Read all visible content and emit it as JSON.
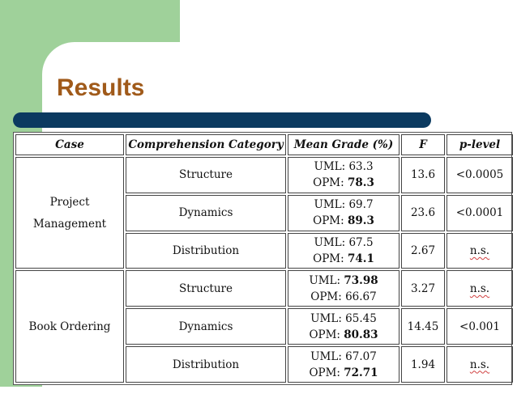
{
  "slide": {
    "title": "Results"
  },
  "table": {
    "headers": [
      "Case",
      "Comprehension Category",
      "Mean Grade (%)",
      "F",
      "p-level"
    ],
    "groups": [
      {
        "case": "Project Management",
        "case_lines": [
          "Project",
          "Management"
        ],
        "rows": [
          {
            "category": "Structure",
            "uml_prefix": "UML: ",
            "uml": "63.3",
            "opm_prefix": "OPM: ",
            "opm": "78.3",
            "bold": "opm",
            "f": "13.6",
            "p": "<0.0005"
          },
          {
            "category": "Dynamics",
            "uml_prefix": "UML: ",
            "uml": "69.7",
            "opm_prefix": "OPM: ",
            "opm": "89.3",
            "bold": "opm",
            "f": "23.6",
            "p": "<0.0001"
          },
          {
            "category": "Distribution",
            "uml_prefix": "UML: ",
            "uml": "67.5",
            "opm_prefix": "OPM: ",
            "opm": "74.1",
            "bold": "opm",
            "f": "2.67",
            "p": "n.s."
          }
        ]
      },
      {
        "case": "Book Ordering",
        "case_lines": [
          "Book Ordering"
        ],
        "rows": [
          {
            "category": "Structure",
            "uml_prefix": "UML: ",
            "uml": "73.98",
            "opm_prefix": "OPM: ",
            "opm": "66.67",
            "bold": "uml",
            "f": "3.27",
            "p": "n.s."
          },
          {
            "category": "Dynamics",
            "uml_prefix": "UML: ",
            "uml": "65.45",
            "opm_prefix": "OPM: ",
            "opm": "80.83",
            "bold": "opm",
            "f": "14.45",
            "p": "<0.001"
          },
          {
            "category": "Distribution",
            "uml_prefix": "UML: ",
            "uml": "67.07",
            "opm_prefix": "OPM: ",
            "opm": "72.71",
            "bold": "opm",
            "f": "1.94",
            "p": "n.s."
          }
        ]
      }
    ]
  }
}
